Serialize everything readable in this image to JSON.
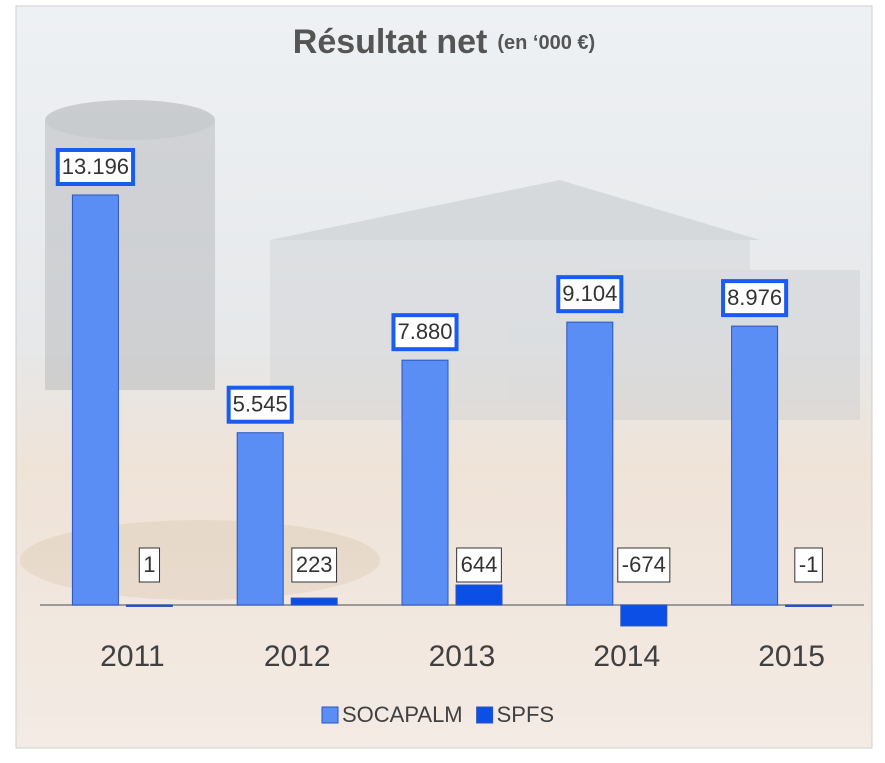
{
  "chart_data": {
    "type": "bar",
    "title": "Résultat net",
    "subtitle": "(en ‘000 €)",
    "categories": [
      "2011",
      "2012",
      "2013",
      "2014",
      "2015"
    ],
    "series": [
      {
        "name": "SOCAPALM",
        "color": "#5b8ef5",
        "values": [
          13196,
          5545,
          7880,
          9104,
          8976
        ],
        "value_labels": [
          "13.196",
          "5.545",
          "7.880",
          "9.104",
          "8.976"
        ]
      },
      {
        "name": "SPFS",
        "color": "#0b4fe6",
        "values": [
          1,
          223,
          644,
          -674,
          -1
        ]
      }
    ],
    "legend": "bottom"
  }
}
